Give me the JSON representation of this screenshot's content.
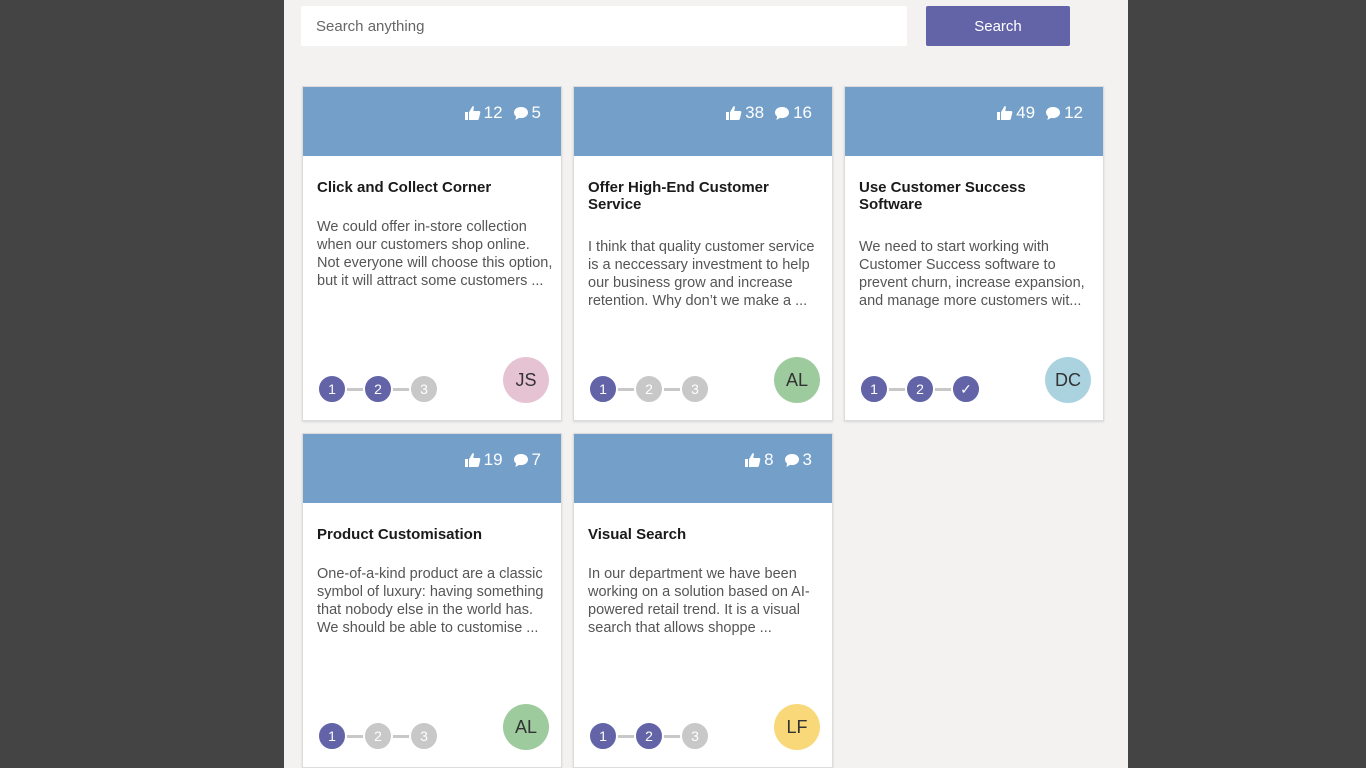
{
  "search": {
    "placeholder": "Search anything",
    "button_label": "Search"
  },
  "colors": {
    "accent": "#6264a7",
    "card_header": "#739fc9",
    "step_inactive": "#c8c8c8"
  },
  "cards": [
    {
      "likes": "12",
      "comments": "5",
      "title": "Click and Collect Corner",
      "description": "We could offer in-store collection when our customers shop online. Not everyone will choose this option, but it will attract some customers ...",
      "steps": [
        "1",
        "2",
        "3"
      ],
      "steps_completed": 2,
      "avatar_initials": "JS",
      "avatar_color": "#e6c3d3"
    },
    {
      "likes": "38",
      "comments": "16",
      "title": "Offer High-End Customer Service",
      "description": "I think that quality customer service is a neccessary investment to help our business grow and increase retention. Why don’t we make a ...",
      "steps": [
        "1",
        "2",
        "3"
      ],
      "steps_completed": 1,
      "avatar_initials": "AL",
      "avatar_color": "#9ecb9e"
    },
    {
      "likes": "49",
      "comments": "12",
      "title": "Use Customer Success Software",
      "description": "We need to start working with Customer Success software to prevent churn, increase expansion, and manage more customers wit...",
      "steps": [
        "1",
        "2",
        "✓"
      ],
      "steps_completed": 3,
      "avatar_initials": "DC",
      "avatar_color": "#aad3df"
    },
    {
      "likes": "19",
      "comments": "7",
      "title": "Product Customisation",
      "description": "One-of-a-kind product are a classic symbol of luxury: having something that nobody else in the world has. We should be able to customise ...",
      "steps": [
        "1",
        "2",
        "3"
      ],
      "steps_completed": 1,
      "avatar_initials": "AL",
      "avatar_color": "#9ecb9e"
    },
    {
      "likes": "8",
      "comments": "3",
      "title": "Visual Search",
      "description": "In our department we have been working on a solution based on AI-powered retail trend. It is a visual search that allows shoppe ...",
      "steps": [
        "1",
        "2",
        "3"
      ],
      "steps_completed": 2,
      "avatar_initials": "LF",
      "avatar_color": "#f8d878"
    }
  ]
}
